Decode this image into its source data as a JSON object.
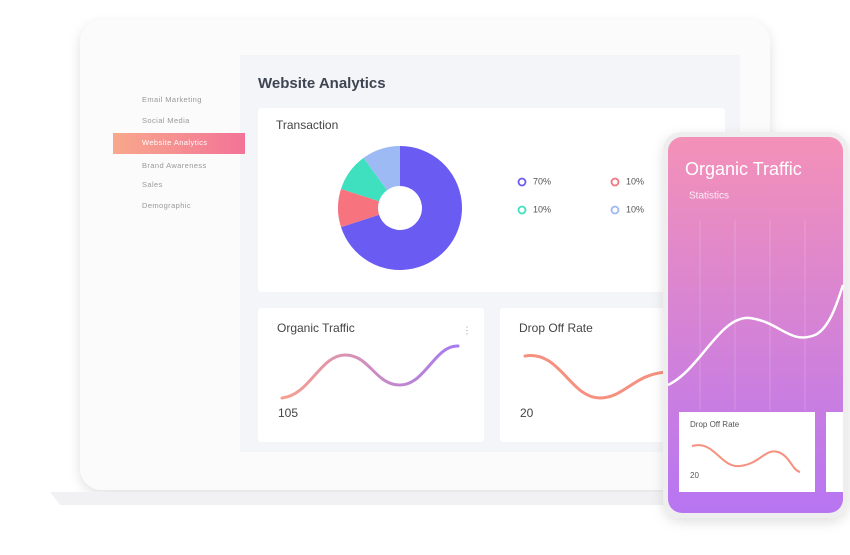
{
  "sidebar": {
    "items": [
      "Email Marketing",
      "Social Media",
      "Website Analytics",
      "Brand Awareness",
      "Sales",
      "Demographic"
    ],
    "active": 2
  },
  "main": {
    "title": "Website Analytics",
    "transaction": {
      "title": "Transaction",
      "segments": [
        {
          "value": 70,
          "label": "70%",
          "color": "#6a5cf2"
        },
        {
          "value": 10,
          "label": "10%",
          "color": "#f7747f"
        },
        {
          "value": 10,
          "label": "10%",
          "color": "#3fe0bf"
        },
        {
          "value": 10,
          "label": "10%",
          "color": "#9dbaf5"
        }
      ]
    },
    "cards": [
      {
        "title": "Organic Traffic",
        "value": "105"
      },
      {
        "title": "Drop Off Rate",
        "value": "20"
      }
    ]
  },
  "phone": {
    "title": "Organic Traffic",
    "subtitle": "Statistics",
    "card": {
      "title": "Drop Off Rate",
      "value": "20"
    }
  }
}
